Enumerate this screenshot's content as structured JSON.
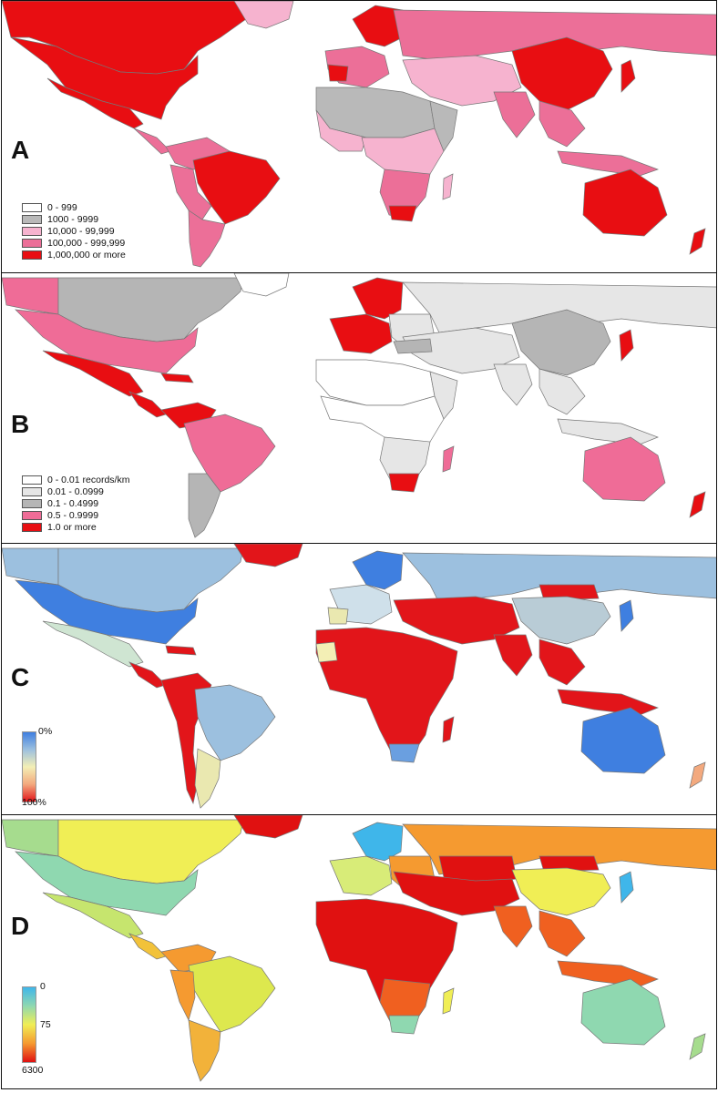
{
  "panels": [
    {
      "letter": "A",
      "legend": [
        {
          "label": "0 - 999",
          "color": "#ffffff"
        },
        {
          "label": "1000 - 9999",
          "color": "#b9b9b9"
        },
        {
          "label": "10,000 - 99,999",
          "color": "#f6b3cf"
        },
        {
          "label": "100,000 - 999,999",
          "color": "#ec6f98"
        },
        {
          "label": "1,000,000 or more",
          "color": "#e80e12"
        }
      ]
    },
    {
      "letter": "B",
      "legend": [
        {
          "label": "0 - 0.01 records/km",
          "color": "#ffffff"
        },
        {
          "label": "0.01 - 0.0999",
          "color": "#e6e6e6"
        },
        {
          "label": "0.1 - 0.4999",
          "color": "#b5b5b5"
        },
        {
          "label": "0.5 - 0.9999",
          "color": "#ef6c97"
        },
        {
          "label": "1.0 or more",
          "color": "#e80e12"
        }
      ]
    },
    {
      "letter": "C",
      "ramp": {
        "top_label": "0%",
        "bottom_label": "100%",
        "colors": [
          "#3f7fe0",
          "#9cc0df",
          "#f3efb5",
          "#f3a97e",
          "#e2151a"
        ]
      }
    },
    {
      "letter": "D",
      "ramp": {
        "top_label": "0",
        "mid_label": "75",
        "bottom_label": "6300",
        "colors": [
          "#3fb6ea",
          "#8fd8b0",
          "#f0ee55",
          "#f59a30",
          "#e01111"
        ]
      }
    }
  ]
}
